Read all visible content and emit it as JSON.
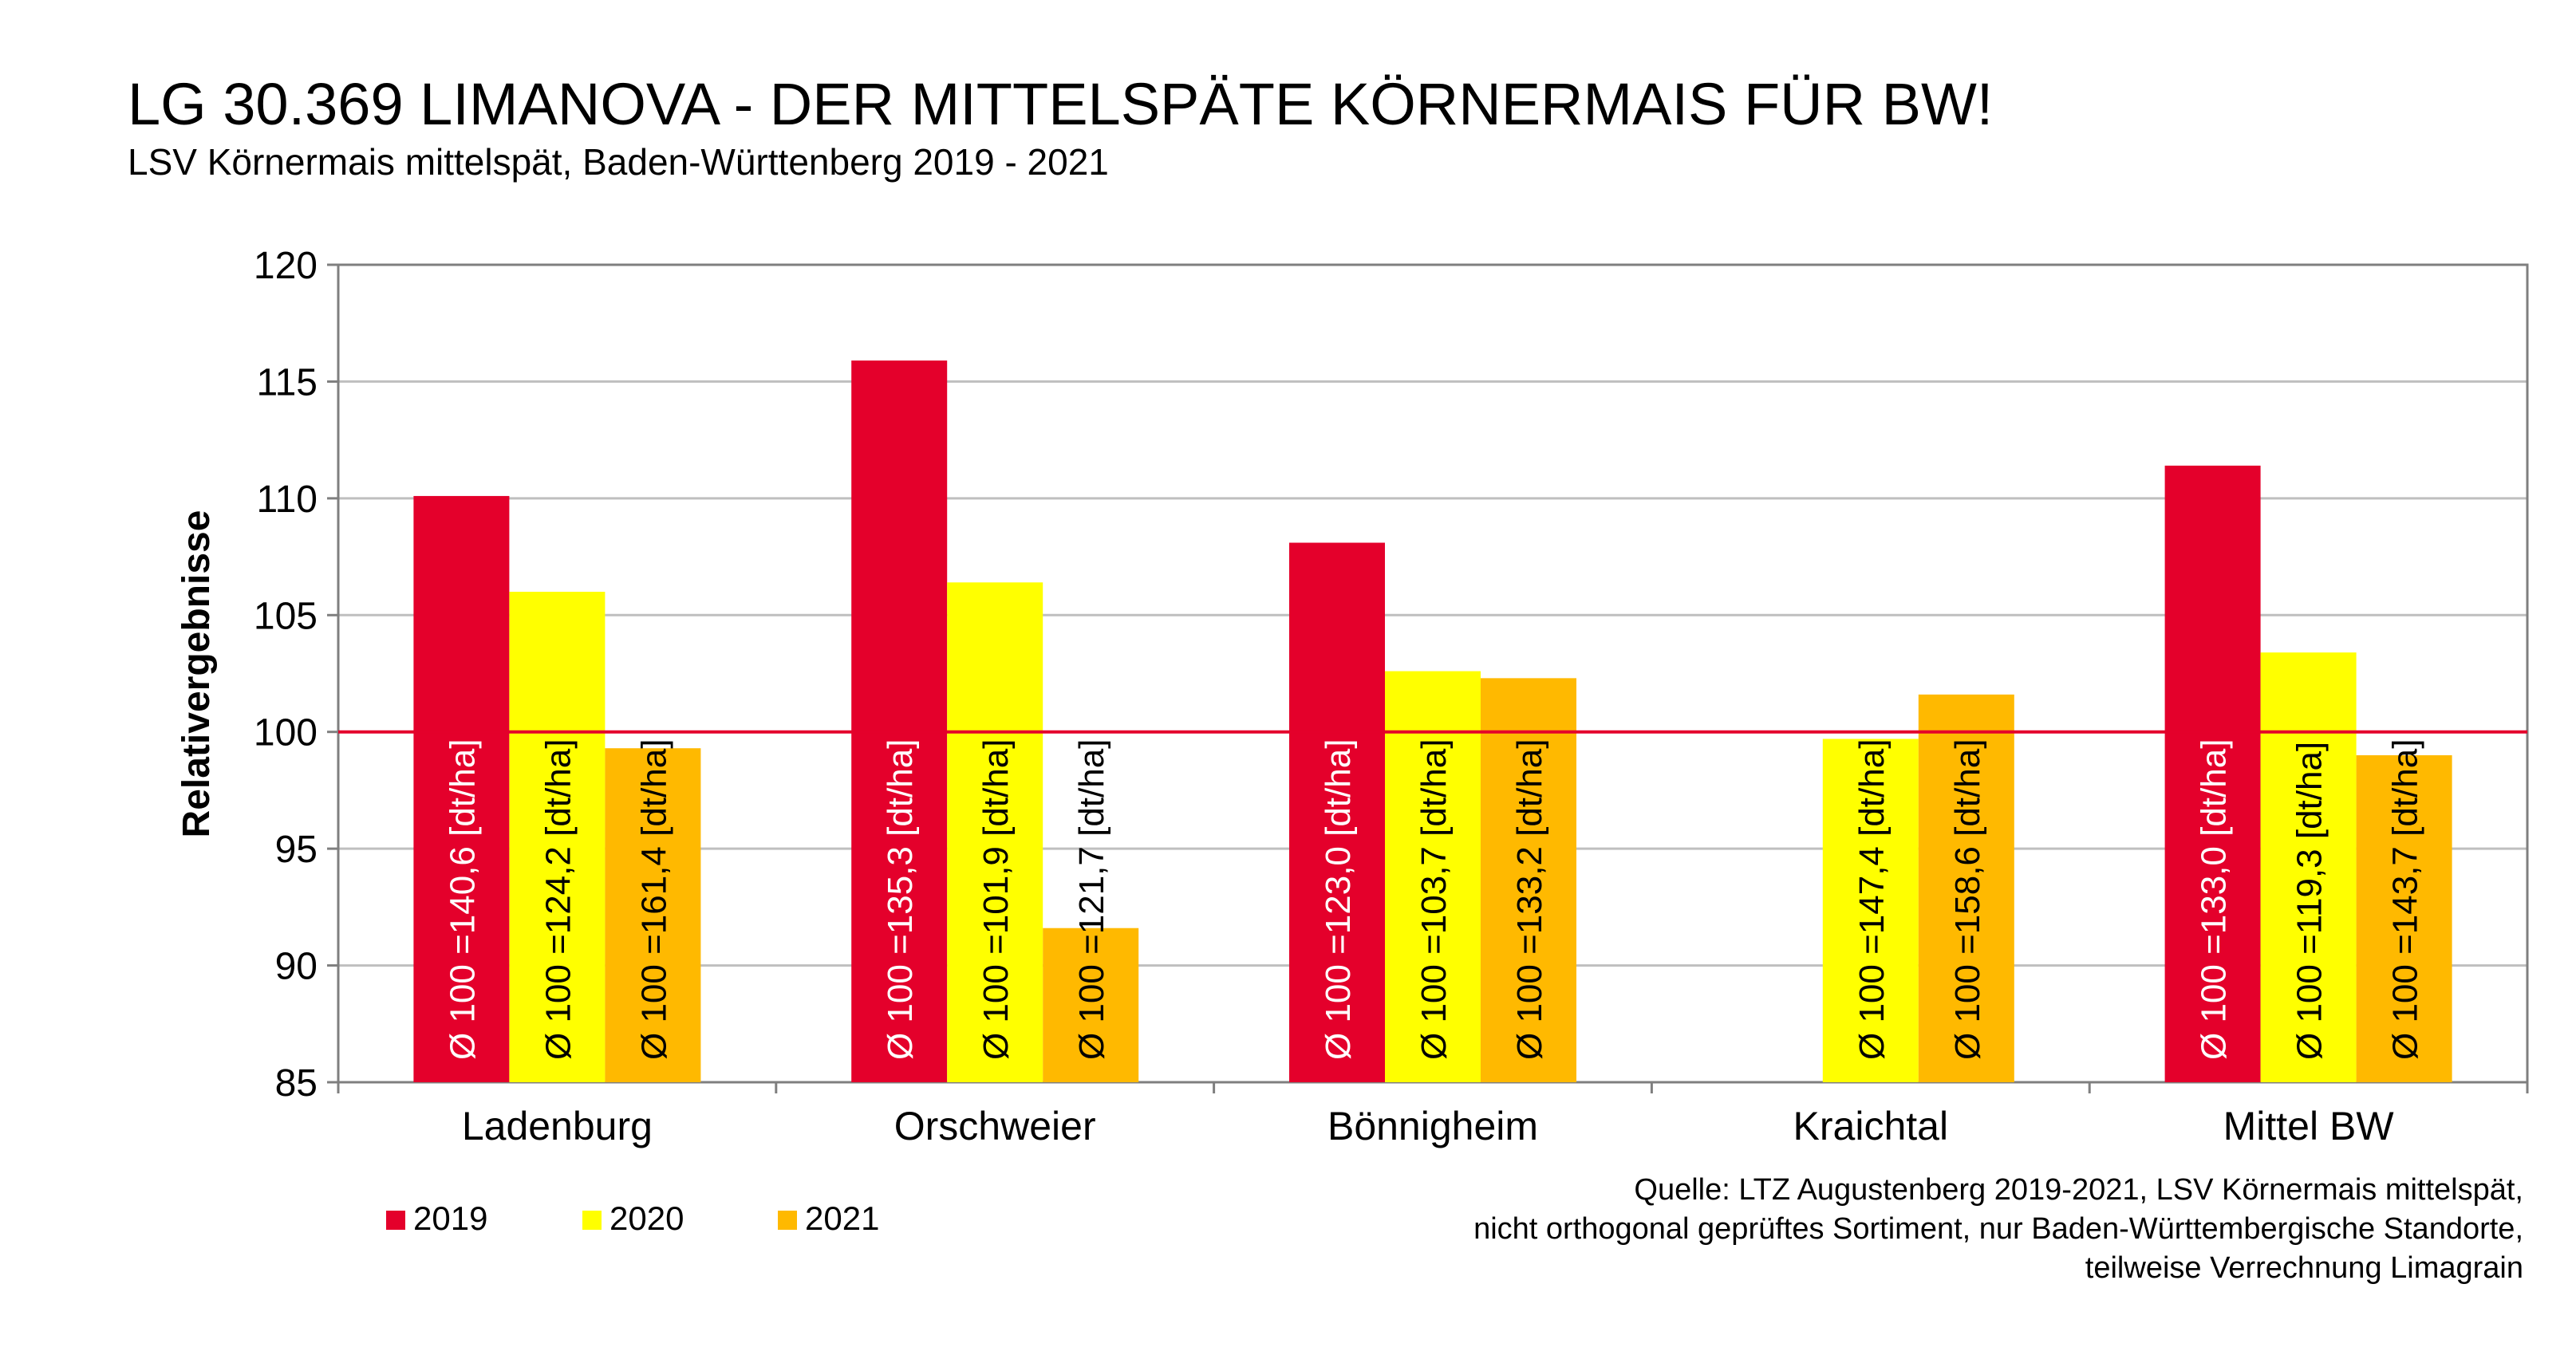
{
  "header": {
    "title": "LG 30.369 LIMANOVA - DER MITTELSPÄTE KÖRNERMAIS FÜR BW!",
    "subtitle": "LSV Körnermais mittelspät, Baden-Württenberg 2019 - 2021"
  },
  "source_note": [
    "Quelle: LTZ Augustenberg 2019-2021, LSV Körnermais mittelspät,",
    "nicht orthogonal geprüftes Sortiment, nur Baden-Württembergische Standorte,",
    "teilweise Verrechnung Limagrain"
  ],
  "chart_data": {
    "type": "bar",
    "title": "LG 30.369 LIMANOVA - DER MITTELSPÄTE KÖRNERMAIS FÜR BW!",
    "subtitle": "LSV Körnermais mittelspät, Baden-Württenberg 2019 - 2021",
    "ylabel": "Relativergebnisse",
    "ylim": [
      85,
      120
    ],
    "yticks": [
      "120",
      "115",
      "110",
      "105",
      "100",
      "95",
      "90",
      "85"
    ],
    "reference_line": 100,
    "categories": [
      "Ladenburg",
      "Orschweier",
      "Bönnigheim",
      "Kraichtal",
      "Mittel BW"
    ],
    "series": [
      {
        "name": "2019",
        "color": "#e4002b",
        "values": [
          110.1,
          115.9,
          108.1,
          null,
          111.4
        ],
        "labels": [
          "Ø 100 =140,6 [dt/ha]",
          "Ø 100 =135,3 [dt/ha]",
          "Ø 100 =123,0 [dt/ha]",
          null,
          "Ø 100 =133,0 [dt/ha]"
        ]
      },
      {
        "name": "2020",
        "color": "#ffff00",
        "values": [
          106.0,
          106.4,
          102.6,
          99.7,
          103.4
        ],
        "labels": [
          "Ø 100 =124,2 [dt/ha]",
          "Ø 100 =101,9 [dt/ha]",
          "Ø 100 =103,7 [dt/ha]",
          "Ø 100 =147,4 [dt/ha]",
          "Ø 100 =119,3 [dt/ha]"
        ]
      },
      {
        "name": "2021",
        "color": "#ffb900",
        "values": [
          99.3,
          91.6,
          102.3,
          101.6,
          99.0
        ],
        "labels": [
          "Ø 100 =161,4 [dt/ha]",
          "Ø 100 =121,7 [dt/ha]",
          "Ø 100 =133,2 [dt/ha]",
          "Ø 100 =158,6 [dt/ha]",
          "Ø 100 =143,7 [dt/ha]"
        ]
      }
    ],
    "grid": true,
    "legend": "bottom-left",
    "colors": {
      "reference_line": "#e4002b",
      "grid": "#bfbfbf",
      "axis": "#7f7f7f"
    }
  }
}
